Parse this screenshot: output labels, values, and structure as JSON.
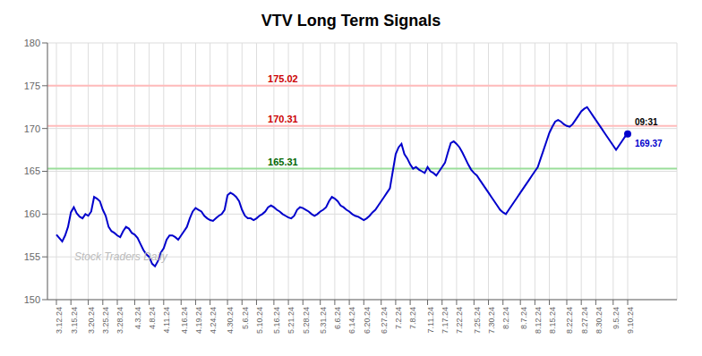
{
  "chart_data": {
    "type": "line",
    "title": "VTV Long Term Signals",
    "categories": [
      "3.12.24",
      null,
      null,
      null,
      null,
      "3.15.24",
      null,
      null,
      null,
      null,
      null,
      "3.20.24",
      null,
      null,
      null,
      null,
      "3.25.24",
      null,
      null,
      null,
      null,
      "3.28.24",
      null,
      null,
      null,
      null,
      null,
      "4.3.24",
      null,
      null,
      null,
      null,
      "4.8.24",
      null,
      null,
      null,
      null,
      "4.11.24",
      null,
      null,
      null,
      null,
      null,
      "4.16.24",
      null,
      null,
      null,
      null,
      "4.19.24",
      null,
      null,
      null,
      null,
      "4.24.24",
      null,
      null,
      null,
      null,
      null,
      "4.30.24",
      null,
      null,
      null,
      null,
      "5.6.24",
      null,
      null,
      null,
      null,
      "5.10.24",
      null,
      null,
      null,
      null,
      null,
      "5.16.24",
      null,
      null,
      null,
      null,
      "5.21.24",
      null,
      null,
      null,
      null,
      "5.28.24",
      null,
      null,
      null,
      null,
      null,
      "5.31.24",
      null,
      null,
      null,
      null,
      "6.6.24",
      null,
      null,
      null,
      null,
      "6.14.24",
      null,
      null,
      null,
      null,
      "6.20.24",
      null,
      null,
      null,
      null,
      null,
      "6.27.24",
      null,
      null,
      null,
      null,
      "7.2.24",
      null,
      null,
      null,
      null,
      "7.8.24",
      null,
      null,
      null,
      null,
      null,
      "7.11.24",
      null,
      null,
      null,
      null,
      "7.17.24",
      null,
      null,
      null,
      null,
      "7.22.24",
      null,
      null,
      null,
      null,
      null,
      "7.25.24",
      null,
      null,
      null,
      null,
      "7.30.24",
      null,
      null,
      null,
      null,
      "8.2.24",
      null,
      null,
      null,
      null,
      null,
      "8.7.24",
      null,
      null,
      null,
      null,
      "8.12.24",
      null,
      null,
      null,
      null,
      "8.15.24",
      null,
      null,
      null,
      null,
      null,
      "8.22.24",
      null,
      null,
      null,
      null,
      "8.27.24",
      null,
      null,
      null,
      null,
      "8.30.24",
      null,
      null,
      null,
      null,
      null,
      "9.5.24",
      null,
      null,
      null,
      null,
      "9.10.24"
    ],
    "values": [
      157.6,
      157.2,
      156.8,
      157.5,
      158.5,
      160.2,
      160.8,
      160.1,
      159.7,
      159.5,
      160.0,
      159.8,
      160.3,
      162.0,
      161.8,
      161.5,
      160.5,
      159.8,
      158.5,
      158.0,
      157.8,
      157.5,
      157.3,
      158.0,
      158.5,
      158.3,
      157.8,
      157.6,
      157.2,
      156.5,
      155.8,
      155.3,
      155.0,
      154.2,
      153.9,
      154.5,
      155.5,
      156.0,
      157.0,
      157.5,
      157.5,
      157.3,
      157.0,
      157.5,
      158.0,
      158.5,
      159.5,
      160.3,
      160.7,
      160.5,
      160.3,
      159.8,
      159.5,
      159.3,
      159.2,
      159.5,
      159.8,
      160.0,
      160.5,
      162.2,
      162.5,
      162.3,
      162.0,
      161.5,
      160.5,
      159.8,
      159.5,
      159.5,
      159.3,
      159.5,
      159.8,
      160.0,
      160.3,
      160.8,
      161.0,
      160.8,
      160.5,
      160.3,
      160.0,
      159.8,
      159.6,
      159.5,
      159.8,
      160.5,
      160.8,
      160.7,
      160.5,
      160.3,
      160.0,
      159.8,
      160.0,
      160.3,
      160.5,
      160.8,
      161.5,
      162.0,
      161.8,
      161.5,
      161.0,
      160.8,
      160.5,
      160.3,
      160.0,
      159.8,
      159.7,
      159.5,
      159.3,
      159.5,
      159.8,
      160.2,
      160.5,
      161.0,
      161.5,
      162.0,
      162.5,
      163.0,
      165.0,
      167.0,
      167.8,
      168.2,
      167.0,
      166.5,
      165.8,
      165.3,
      165.5,
      165.2,
      165.0,
      164.8,
      165.5,
      165.0,
      164.8,
      164.5,
      165.0,
      165.5,
      166.0,
      167.2,
      168.3,
      168.5,
      168.2,
      167.8,
      167.2,
      166.5,
      165.8,
      165.2,
      164.8,
      164.5,
      164.0,
      163.5,
      163.0,
      162.5,
      162.0,
      161.5,
      161.0,
      160.5,
      160.2,
      160.0,
      160.5,
      161.0,
      161.5,
      162.0,
      162.5,
      163.0,
      163.5,
      164.0,
      164.5,
      165.0,
      165.5,
      166.5,
      167.5,
      168.5,
      169.5,
      170.2,
      170.8,
      171.0,
      170.8,
      170.5,
      170.3,
      170.2,
      170.5,
      171.0,
      171.5,
      172.0,
      172.3,
      172.5,
      172.0,
      171.5,
      171.0,
      170.5,
      170.0,
      169.5,
      169.0,
      168.5,
      168.0,
      167.5,
      168.0,
      168.5,
      169.0,
      169.37
    ],
    "color": "#0000cc",
    "ylim": [
      150,
      180
    ],
    "yticks": [
      150,
      155,
      160,
      165,
      170,
      175,
      180
    ],
    "grid": true,
    "reference_lines": [
      {
        "value": 175.02,
        "label": "175.02",
        "color": "#ffbbbb",
        "label_color": "#cc0000"
      },
      {
        "value": 170.31,
        "label": "170.31",
        "color": "#ffbbbb",
        "label_color": "#cc0000"
      },
      {
        "value": 165.31,
        "label": "165.31",
        "color": "#99dd99",
        "label_color": "#006600"
      }
    ],
    "last_point": {
      "time": "09:31",
      "value": 169.37,
      "color": "#0000cc"
    },
    "watermark": "Stock Traders Daily"
  }
}
